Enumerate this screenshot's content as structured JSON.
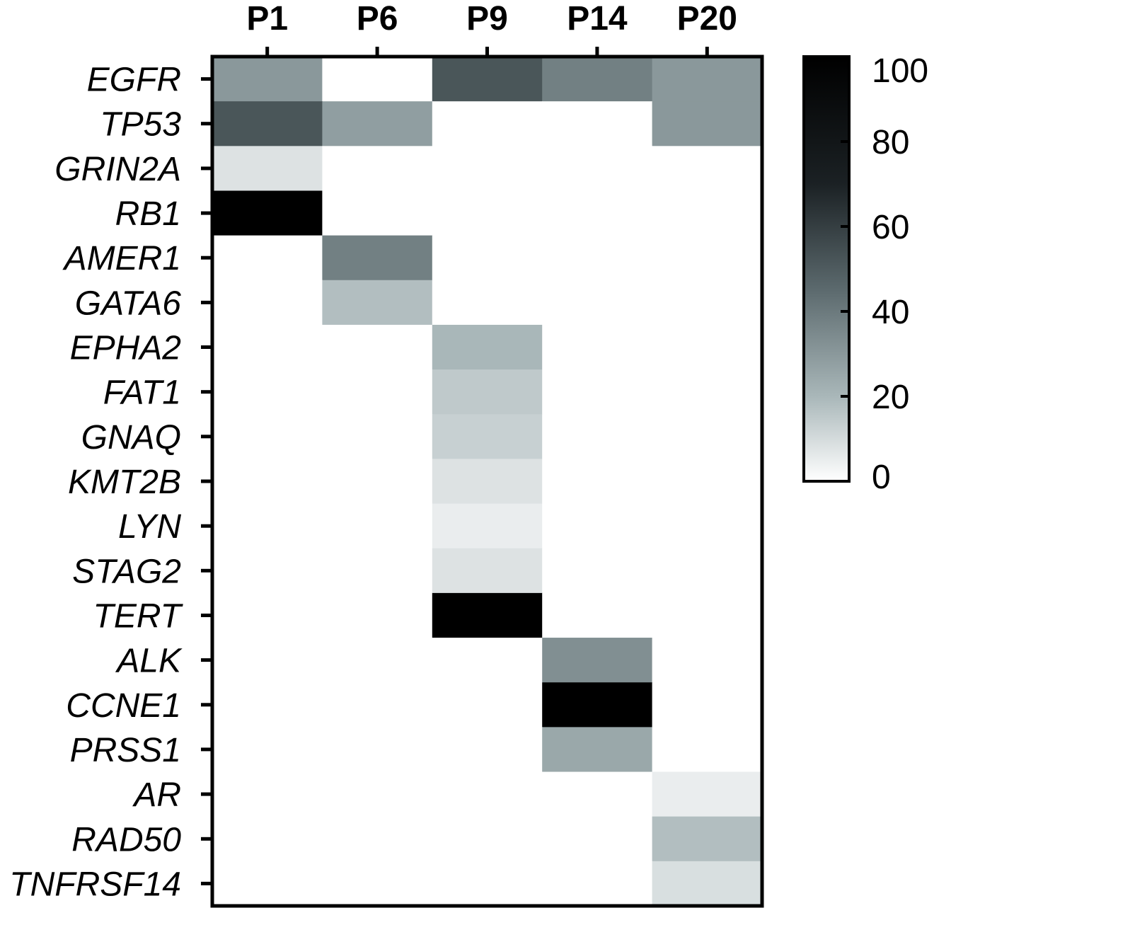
{
  "chart_data": {
    "type": "heatmap",
    "columns": [
      "P1",
      "P6",
      "P9",
      "P14",
      "P20"
    ],
    "rows": [
      "EGFR",
      "TP53",
      "GRIN2A",
      "RB1",
      "AMER1",
      "GATA6",
      "EPHA2",
      "FAT1",
      "GNAQ",
      "KMT2B",
      "LYN",
      "STAG2",
      "TERT",
      "ALK",
      "CCNE1",
      "PRSS1",
      "AR",
      "RAD50",
      "TNFRSF14"
    ],
    "values": [
      [
        30,
        0,
        52,
        38,
        30
      ],
      [
        52,
        28,
        0,
        0,
        30
      ],
      [
        8,
        0,
        0,
        0,
        0
      ],
      [
        100,
        0,
        0,
        0,
        0
      ],
      [
        0,
        38,
        0,
        0,
        0
      ],
      [
        0,
        18,
        0,
        0,
        0
      ],
      [
        0,
        0,
        20,
        0,
        0
      ],
      [
        0,
        0,
        15,
        0,
        0
      ],
      [
        0,
        0,
        13,
        0,
        0
      ],
      [
        0,
        0,
        8,
        0,
        0
      ],
      [
        0,
        0,
        5,
        0,
        0
      ],
      [
        0,
        0,
        8,
        0,
        0
      ],
      [
        0,
        0,
        100,
        0,
        0
      ],
      [
        0,
        0,
        0,
        33,
        0
      ],
      [
        0,
        0,
        0,
        100,
        0
      ],
      [
        0,
        0,
        0,
        25,
        0
      ],
      [
        0,
        0,
        0,
        0,
        5
      ],
      [
        0,
        0,
        0,
        0,
        18
      ],
      [
        0,
        0,
        0,
        0,
        9
      ]
    ],
    "colorbar": {
      "range": [
        0,
        100
      ],
      "ticks": [
        0,
        20,
        40,
        60,
        80,
        100
      ],
      "tick_labels": [
        "0",
        "20",
        "40",
        "60",
        "80",
        "100"
      ],
      "low_color": "#ffffff",
      "high_color": "#000000",
      "mid_tint": "#8fa3a6"
    },
    "grid": false,
    "title": "",
    "xlabel": "",
    "ylabel": ""
  }
}
